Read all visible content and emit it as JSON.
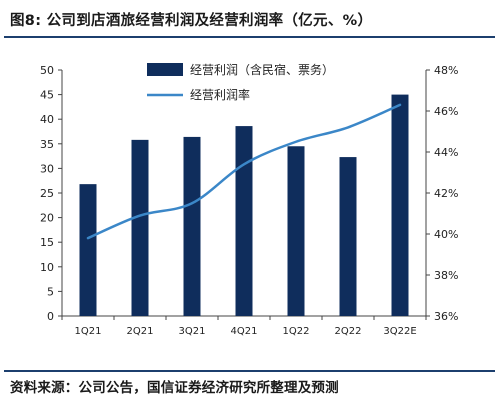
{
  "title": "图8: 公司到店酒旅经营利润及经营利润率（亿元、%）",
  "source": "资料来源：公司公告，国信证券经济研究所整理及预测",
  "colors": {
    "bar": "#0f2d5c",
    "line": "#3b87c8",
    "rule": "#1c3f6e"
  },
  "chart_data": {
    "type": "bar",
    "categories": [
      "1Q21",
      "2Q21",
      "3Q21",
      "4Q21",
      "1Q22",
      "2Q22",
      "3Q22E"
    ],
    "series": [
      {
        "name": "经营利润（含民宿、票务）",
        "type": "bar",
        "axis": "left",
        "values": [
          26.8,
          35.8,
          36.4,
          38.6,
          34.5,
          32.3,
          45.0
        ]
      },
      {
        "name": "经营利润率",
        "type": "line",
        "axis": "right",
        "values": [
          39.8,
          40.9,
          41.5,
          43.4,
          44.5,
          45.2,
          46.3
        ]
      }
    ],
    "y_left": {
      "min": 0,
      "max": 50,
      "step": 5,
      "ticks": [
        "0",
        "5",
        "10",
        "15",
        "20",
        "25",
        "30",
        "35",
        "40",
        "45",
        "50"
      ]
    },
    "y_right": {
      "min": 36,
      "max": 48,
      "step": 2,
      "ticks": [
        "36%",
        "38%",
        "40%",
        "42%",
        "44%",
        "46%",
        "48%"
      ]
    },
    "legend_position": "top-center",
    "grid": false
  }
}
